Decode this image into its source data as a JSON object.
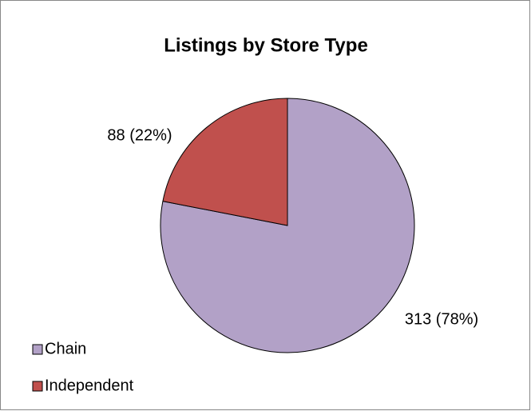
{
  "chart_data": {
    "type": "pie",
    "title": "Listings by Store Type",
    "categories": [
      "Chain",
      "Independent"
    ],
    "values": [
      313,
      88
    ],
    "value_labels": [
      "313 (78%)",
      "88 (22%)"
    ],
    "colors": [
      "#b2a1c7",
      "#c0504d"
    ],
    "legend": "bottom-left"
  }
}
